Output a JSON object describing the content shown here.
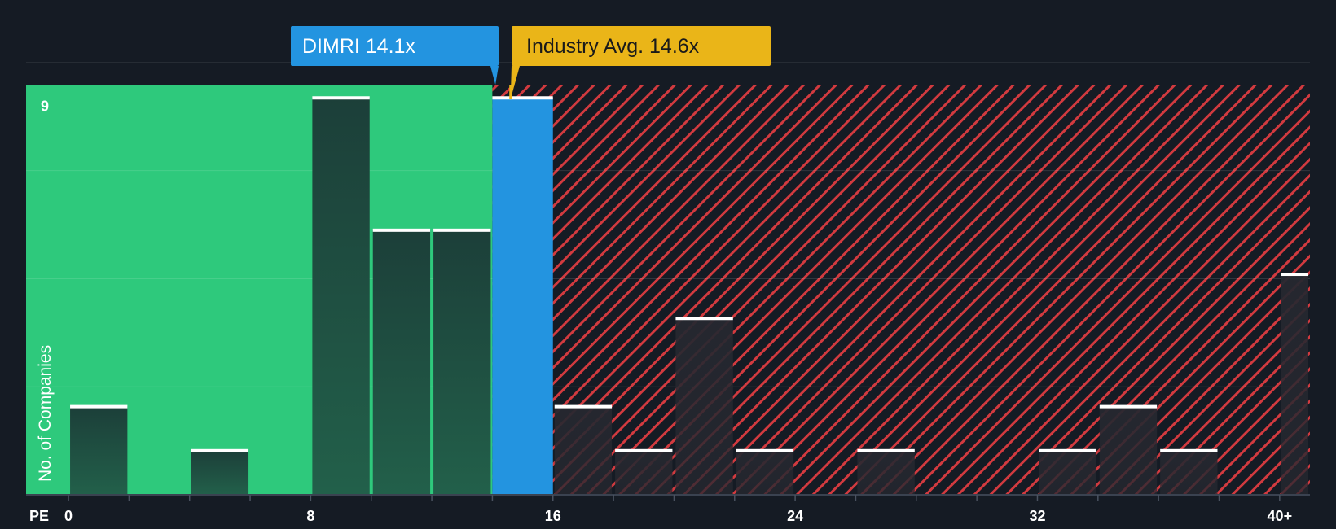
{
  "chart_data": {
    "type": "bar",
    "xlabel": "PE",
    "ylabel": "No. of Companies",
    "x_ticks": [
      {
        "value": 0,
        "label": "0"
      },
      {
        "value": 8,
        "label": "8"
      },
      {
        "value": 16,
        "label": "16"
      },
      {
        "value": 24,
        "label": "24"
      },
      {
        "value": 32,
        "label": "32"
      },
      {
        "value": 40,
        "label": "40+"
      }
    ],
    "xlim": [
      -1.4,
      41.0
    ],
    "ylim": [
      0,
      9.3
    ],
    "y_ticks": [
      {
        "value": 9,
        "label": "9"
      }
    ],
    "bin_width": 2,
    "bins": [
      {
        "x0": 0,
        "x1": 2,
        "count": 2
      },
      {
        "x0": 2,
        "x1": 4,
        "count": 0
      },
      {
        "x0": 4,
        "x1": 6,
        "count": 1
      },
      {
        "x0": 6,
        "x1": 8,
        "count": 0
      },
      {
        "x0": 8,
        "x1": 10,
        "count": 9
      },
      {
        "x0": 10,
        "x1": 12,
        "count": 6
      },
      {
        "x0": 12,
        "x1": 14,
        "count": 6
      },
      {
        "x0": 14,
        "x1": 16,
        "count": 9
      },
      {
        "x0": 16,
        "x1": 18,
        "count": 2
      },
      {
        "x0": 18,
        "x1": 20,
        "count": 1
      },
      {
        "x0": 20,
        "x1": 22,
        "count": 4
      },
      {
        "x0": 22,
        "x1": 24,
        "count": 1
      },
      {
        "x0": 24,
        "x1": 26,
        "count": 0
      },
      {
        "x0": 26,
        "x1": 28,
        "count": 1
      },
      {
        "x0": 28,
        "x1": 30,
        "count": 0
      },
      {
        "x0": 30,
        "x1": 32,
        "count": 0
      },
      {
        "x0": 32,
        "x1": 34,
        "count": 1
      },
      {
        "x0": 34,
        "x1": 36,
        "count": 2
      },
      {
        "x0": 36,
        "x1": 38,
        "count": 1
      },
      {
        "x0": 38,
        "x1": 40,
        "count": 0
      },
      {
        "x0": 40,
        "x1": 41,
        "count": 5
      }
    ],
    "highlight": {
      "label": "DIMRI 14.1x",
      "value": 14.1,
      "color": "#2394e0"
    },
    "industry_avg": {
      "label": "Industry Avg. 14.6x",
      "value": 14.6,
      "color": "#eab518"
    },
    "regions": {
      "below_avg_color": "#2ec97c",
      "above_avg_color": "#d23a3f"
    },
    "colors": {
      "background": "#151b24",
      "bar_in_green": "#1e4a3f",
      "bar_in_red": "#262830",
      "bar_cap": "#ffffff",
      "highlight_bar": "#2394e0"
    },
    "grid": true
  }
}
